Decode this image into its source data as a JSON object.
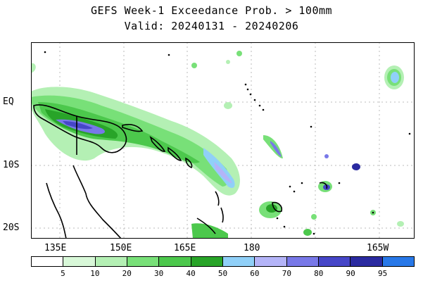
{
  "title": "GEFS Week-1 Exceedance Prob. > 100mm",
  "subtitle": "Valid: 20240131 - 20240206",
  "lat_labels": [
    "EQ",
    "10S",
    "20S"
  ],
  "lon_labels": [
    "135E",
    "150E",
    "165E",
    "180",
    "165W"
  ],
  "legend": {
    "labels": [
      "5",
      "10",
      "20",
      "30",
      "40",
      "50",
      "60",
      "70",
      "80",
      "90",
      "95"
    ],
    "colors": [
      "#ffffff",
      "#d8f8d8",
      "#b4f0b4",
      "#78e078",
      "#4cc84c",
      "#28a428",
      "#90d0f8",
      "#b4b4f8",
      "#7878e8",
      "#4646c8",
      "#2a2aa0",
      "#2878e8"
    ]
  }
}
